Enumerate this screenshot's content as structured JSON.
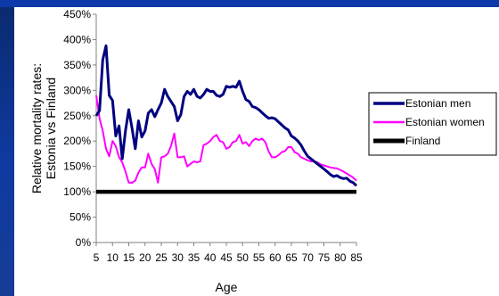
{
  "colors": {
    "frame": "#0d3aa8",
    "estonian_men": "#000080",
    "estonian_women": "#ff00ff",
    "finland": "#000000"
  },
  "chart_data": {
    "type": "line",
    "title": "",
    "xlabel": "Age",
    "ylabel_lines": [
      "Relative mortality rates:",
      "Estonia vs Finland"
    ],
    "xlim": [
      5,
      85
    ],
    "ylim": [
      0,
      450
    ],
    "x_ticks": [
      5,
      10,
      15,
      20,
      25,
      30,
      35,
      40,
      45,
      50,
      55,
      60,
      65,
      70,
      75,
      80,
      85
    ],
    "y_ticks": [
      {
        "value": 0,
        "label": "0%"
      },
      {
        "value": 50,
        "label": "50%"
      },
      {
        "value": 100,
        "label": "100%"
      },
      {
        "value": 150,
        "label": "150%"
      },
      {
        "value": 200,
        "label": "200%"
      },
      {
        "value": 250,
        "label": "250%"
      },
      {
        "value": 300,
        "label": "300%"
      },
      {
        "value": 350,
        "label": "350%"
      },
      {
        "value": 400,
        "label": "400%"
      },
      {
        "value": 450,
        "label": "450%"
      }
    ],
    "legend_position": "right",
    "series": [
      {
        "name": "Estonian men",
        "color": "#000080",
        "points": [
          [
            5,
            250
          ],
          [
            6,
            260
          ],
          [
            7,
            360
          ],
          [
            8,
            388
          ],
          [
            9,
            290
          ],
          [
            10,
            280
          ],
          [
            11,
            210
          ],
          [
            12,
            230
          ],
          [
            13,
            165
          ],
          [
            14,
            220
          ],
          [
            15,
            262
          ],
          [
            16,
            225
          ],
          [
            17,
            185
          ],
          [
            18,
            240
          ],
          [
            19,
            208
          ],
          [
            20,
            220
          ],
          [
            21,
            255
          ],
          [
            22,
            262
          ],
          [
            23,
            248
          ],
          [
            24,
            262
          ],
          [
            25,
            275
          ],
          [
            26,
            302
          ],
          [
            27,
            288
          ],
          [
            28,
            278
          ],
          [
            29,
            268
          ],
          [
            30,
            240
          ],
          [
            31,
            252
          ],
          [
            32,
            288
          ],
          [
            33,
            298
          ],
          [
            34,
            292
          ],
          [
            35,
            302
          ],
          [
            36,
            288
          ],
          [
            37,
            285
          ],
          [
            38,
            292
          ],
          [
            39,
            302
          ],
          [
            40,
            298
          ],
          [
            41,
            298
          ],
          [
            42,
            290
          ],
          [
            43,
            288
          ],
          [
            44,
            292
          ],
          [
            45,
            308
          ],
          [
            46,
            306
          ],
          [
            47,
            308
          ],
          [
            48,
            306
          ],
          [
            49,
            318
          ],
          [
            50,
            298
          ],
          [
            51,
            282
          ],
          [
            52,
            278
          ],
          [
            53,
            268
          ],
          [
            54,
            266
          ],
          [
            55,
            262
          ],
          [
            56,
            256
          ],
          [
            57,
            250
          ],
          [
            58,
            245
          ],
          [
            59,
            246
          ],
          [
            60,
            244
          ],
          [
            61,
            238
          ],
          [
            62,
            232
          ],
          [
            63,
            226
          ],
          [
            64,
            222
          ],
          [
            65,
            210
          ],
          [
            66,
            206
          ],
          [
            67,
            200
          ],
          [
            68,
            192
          ],
          [
            69,
            180
          ],
          [
            70,
            170
          ],
          [
            71,
            165
          ],
          [
            72,
            160
          ],
          [
            73,
            155
          ],
          [
            74,
            150
          ],
          [
            75,
            145
          ],
          [
            76,
            140
          ],
          [
            77,
            134
          ],
          [
            78,
            130
          ],
          [
            79,
            132
          ],
          [
            80,
            128
          ],
          [
            81,
            126
          ],
          [
            82,
            127
          ],
          [
            83,
            121
          ],
          [
            84,
            118
          ],
          [
            85,
            112
          ]
        ]
      },
      {
        "name": "Estonian women",
        "color": "#ff00ff",
        "points": [
          [
            5,
            290
          ],
          [
            6,
            245
          ],
          [
            7,
            220
          ],
          [
            8,
            185
          ],
          [
            9,
            170
          ],
          [
            10,
            200
          ],
          [
            11,
            190
          ],
          [
            12,
            168
          ],
          [
            13,
            158
          ],
          [
            14,
            140
          ],
          [
            15,
            118
          ],
          [
            16,
            118
          ],
          [
            17,
            122
          ],
          [
            18,
            138
          ],
          [
            19,
            148
          ],
          [
            20,
            148
          ],
          [
            21,
            175
          ],
          [
            22,
            155
          ],
          [
            23,
            145
          ],
          [
            24,
            118
          ],
          [
            25,
            168
          ],
          [
            26,
            170
          ],
          [
            27,
            175
          ],
          [
            28,
            190
          ],
          [
            29,
            215
          ],
          [
            30,
            168
          ],
          [
            31,
            168
          ],
          [
            32,
            170
          ],
          [
            33,
            150
          ],
          [
            34,
            155
          ],
          [
            35,
            160
          ],
          [
            36,
            158
          ],
          [
            37,
            160
          ],
          [
            38,
            192
          ],
          [
            39,
            195
          ],
          [
            40,
            200
          ],
          [
            41,
            208
          ],
          [
            42,
            212
          ],
          [
            43,
            200
          ],
          [
            44,
            198
          ],
          [
            45,
            185
          ],
          [
            46,
            188
          ],
          [
            47,
            198
          ],
          [
            48,
            200
          ],
          [
            49,
            212
          ],
          [
            50,
            195
          ],
          [
            51,
            198
          ],
          [
            52,
            190
          ],
          [
            53,
            200
          ],
          [
            54,
            205
          ],
          [
            55,
            202
          ],
          [
            56,
            205
          ],
          [
            57,
            198
          ],
          [
            58,
            180
          ],
          [
            59,
            168
          ],
          [
            60,
            168
          ],
          [
            61,
            172
          ],
          [
            62,
            178
          ],
          [
            63,
            180
          ],
          [
            64,
            188
          ],
          [
            65,
            188
          ],
          [
            66,
            178
          ],
          [
            67,
            175
          ],
          [
            68,
            168
          ],
          [
            69,
            165
          ],
          [
            70,
            162
          ],
          [
            71,
            160
          ],
          [
            72,
            160
          ],
          [
            73,
            158
          ],
          [
            74,
            154
          ],
          [
            75,
            152
          ],
          [
            76,
            150
          ],
          [
            77,
            148
          ],
          [
            78,
            147
          ],
          [
            79,
            146
          ],
          [
            80,
            143
          ],
          [
            81,
            140
          ],
          [
            82,
            136
          ],
          [
            83,
            132
          ],
          [
            84,
            128
          ],
          [
            85,
            122
          ]
        ]
      },
      {
        "name": "Finland",
        "color": "#000000",
        "points": [
          [
            5,
            100
          ],
          [
            85,
            100
          ]
        ]
      }
    ]
  }
}
